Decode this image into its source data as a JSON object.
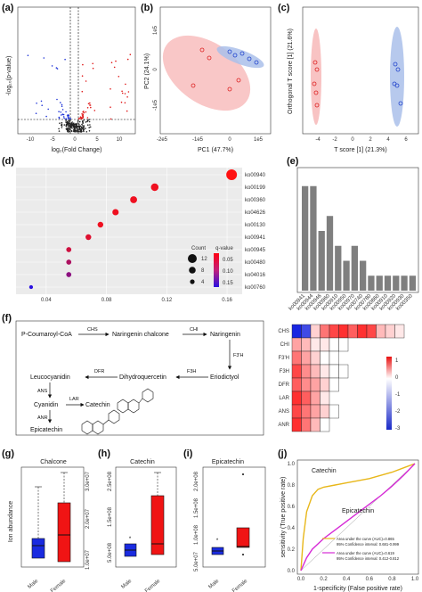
{
  "panels": {
    "a": {
      "letter": "(a)",
      "xlabel": "log₂(Fold Change)",
      "ylabel": "-log₁₀(p-value)",
      "xticks": [
        "-10",
        "-5",
        "0",
        "5",
        "10"
      ]
    },
    "b": {
      "letter": "(b)",
      "xlabel": "PC1 (47.7%)",
      "ylabel": "PC2 (24.1%)",
      "xticks": [
        "-2e5",
        "-1e5",
        "0",
        "1e5"
      ],
      "yticks": [
        "1e5",
        "0",
        "-1e5"
      ]
    },
    "c": {
      "letter": "(c)",
      "xlabel": "T score [1] (21.3%)",
      "ylabel": "Orthogonal T score [1] (21.6%)",
      "xticks": [
        "-4",
        "-2",
        "0",
        "2",
        "4",
        "6"
      ]
    },
    "d": {
      "letter": "(d)",
      "xticks": [
        "0.04",
        "0.08",
        "0.12",
        "0.16"
      ],
      "legend": {
        "count_title": "Count",
        "q_title": "q-value",
        "counts": [
          "12",
          "8",
          "4"
        ],
        "qticks": [
          "0.05",
          "0.10",
          "0.15"
        ]
      }
    },
    "e": {
      "letter": "(e)"
    },
    "f": {
      "letter": "(f)",
      "compounds": {
        "pcoa": "P-Coumaroyl-CoA",
        "chalcone": "Naringenin chalcone",
        "naringenin": "Naringenin",
        "eriodictyol": "Eriodictyol",
        "dihydroquercetin": "Dihydroquercetin",
        "leucocyanidin": "Leucocyanidin",
        "cyanidin": "Cyanidin",
        "catechin": "Catechin",
        "epicatechin": "Epicatechin"
      },
      "enzymes": {
        "chs": "CHS",
        "chi": "CHI",
        "f3h": "F3'H",
        "f3h2": "F3H",
        "dfr": "DFR",
        "ans": "ANS",
        "lar": "LAR",
        "anr": "ANR"
      },
      "heat_rows": [
        "CHS",
        "CHI",
        "F3'H",
        "F3H",
        "DFR",
        "LAR",
        "ANS",
        "ANR"
      ],
      "scale_ticks": [
        "1",
        "0",
        "-1",
        "-2",
        "-3"
      ]
    },
    "g": {
      "letter": "(g)",
      "title": "Chalcone",
      "ylabel": "Ion abundance",
      "yticks": [
        "1.0e+07",
        "2.0e+07",
        "3.0e+07"
      ],
      "groups": [
        "Male",
        "Female"
      ]
    },
    "h": {
      "letter": "(h)",
      "title": "Catechin",
      "yticks": [
        "5.0e+08",
        "1.5e+08",
        "2.5e+08"
      ],
      "groups": [
        "Male",
        "Female"
      ]
    },
    "i": {
      "letter": "(i)",
      "title": "Epicatechin",
      "yticks": [
        "5.0e+07",
        "1.0e+08",
        "1.5e+08",
        "2.0e+08"
      ],
      "groups": [
        "Male",
        "Female"
      ]
    },
    "j": {
      "letter": "(j)",
      "xlabel": "1-specificity (False positive rate)",
      "ylabel": "sensitivity (True positive rate)",
      "ticks": [
        "0.0",
        "0.2",
        "0.4",
        "0.6",
        "0.8",
        "1.0"
      ],
      "label1": "Catechin",
      "label2": "Epicatechin",
      "auc1": "Area under the curve (AUC)=0.865",
      "ci1": "95% Confidence interval: 0.681-0.999",
      "auc2": "Area under the curve (AUC)=0.619",
      "ci2": "95% Confidence interval: 0.412-0.812",
      "color1": "#e8b71a",
      "color2": "#d62ad6"
    }
  },
  "chart_data": [
    {
      "type": "scatter",
      "panel": "d",
      "xlim": [
        0.02,
        0.17
      ],
      "y_categories": [
        "ko00940",
        "ko00199",
        "ko00360",
        "ko04626",
        "ko00130",
        "ko00941",
        "ko00945",
        "ko00480",
        "ko04016",
        "ko00760"
      ],
      "x": [
        0.163,
        0.112,
        0.098,
        0.086,
        0.076,
        0.068,
        0.055,
        0.055,
        0.055,
        0.03
      ],
      "count": [
        12,
        7,
        6,
        5,
        4,
        4,
        3,
        3,
        3,
        1
      ],
      "qvalue": [
        0.03,
        0.04,
        0.04,
        0.04,
        0.04,
        0.05,
        0.06,
        0.08,
        0.1,
        0.16
      ]
    },
    {
      "type": "bar",
      "panel": "e",
      "categories": [
        "ko00941",
        "ko00944",
        "ko00946",
        "ko00960",
        "ko00910",
        "ko00950",
        "ko00970",
        "ko00740",
        "ko00780",
        "ko00860",
        "ko00910",
        "ko00920",
        "ko00930",
        "ko00350"
      ],
      "values": [
        7,
        7,
        4,
        5,
        3,
        2,
        3,
        2,
        1,
        1,
        1,
        1,
        1,
        1
      ],
      "ylim": [
        0,
        8
      ]
    },
    {
      "type": "line",
      "panel": "j",
      "series": [
        {
          "name": "Catechin",
          "x": [
            0,
            0.02,
            0.05,
            0.1,
            0.15,
            0.2,
            0.3,
            0.4,
            0.5,
            0.6,
            0.7,
            0.8,
            0.9,
            1.0
          ],
          "y": [
            0,
            0.3,
            0.55,
            0.7,
            0.76,
            0.78,
            0.8,
            0.82,
            0.84,
            0.86,
            0.89,
            0.92,
            0.96,
            1.0
          ]
        },
        {
          "name": "Epicatechin",
          "x": [
            0,
            0.05,
            0.1,
            0.2,
            0.3,
            0.4,
            0.5,
            0.6,
            0.7,
            0.8,
            0.9,
            1.0
          ],
          "y": [
            0,
            0.12,
            0.2,
            0.3,
            0.38,
            0.46,
            0.54,
            0.62,
            0.7,
            0.79,
            0.89,
            1.0
          ]
        }
      ]
    }
  ]
}
